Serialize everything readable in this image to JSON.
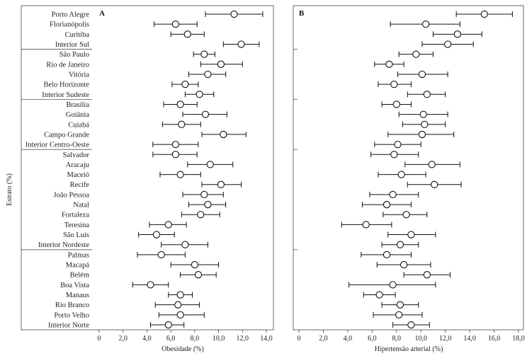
{
  "chart_data": {
    "type": "scatter",
    "style": "forest-plot",
    "y_title": "Estrato (%)",
    "categories": [
      "Porto Alegre",
      "Florianópolis",
      "Curitiba",
      "Interior Sul",
      "São Paulo",
      "Rio de Janeiro",
      "Vitória",
      "Belo Horizonte",
      "Interior Sudeste",
      "Brasília",
      "Goiânia",
      "Cuiabá",
      "Campo Grande",
      "Interior Centro-Oeste",
      "Salvador",
      "Aracaju",
      "Maceió",
      "Recife",
      "João Pessoa",
      "Natal",
      "Fortaleza",
      "Teresina",
      "São Luís",
      "Interior Nordeste",
      "Palmas",
      "Macapá",
      "Belém",
      "Boa Vista",
      "Manaus",
      "Rio Branco",
      "Porto Velho",
      "Interior Norte"
    ],
    "group_sizes": [
      4,
      5,
      5,
      10,
      8
    ],
    "panels": [
      {
        "letter": "A",
        "xlabel": "Obesidade (%)",
        "xlim": [
          0,
          14
        ],
        "ticks": [
          0,
          2,
          4,
          6,
          8,
          10,
          12,
          14
        ],
        "tick_labels": [
          "0",
          "2,0",
          "4,0",
          "6,0",
          "8,0",
          "10,0",
          "12,0",
          "14,0"
        ],
        "estimate": [
          11.3,
          6.4,
          7.4,
          11.9,
          8.8,
          10.2,
          9.1,
          7.2,
          8.4,
          6.8,
          8.9,
          6.9,
          10.4,
          6.4,
          6.4,
          9.3,
          6.8,
          10.2,
          8.8,
          9.1,
          8.5,
          5.8,
          4.8,
          7.2,
          5.2,
          8.0,
          8.3,
          4.3,
          6.8,
          6.6,
          6.8,
          5.8
        ],
        "lower": [
          8.9,
          4.6,
          6.0,
          10.4,
          7.9,
          8.5,
          7.5,
          6.1,
          7.2,
          5.4,
          7.0,
          5.3,
          8.6,
          4.5,
          4.5,
          7.4,
          5.1,
          8.6,
          7.0,
          7.5,
          6.9,
          4.2,
          3.3,
          5.2,
          3.2,
          6.0,
          6.8,
          2.8,
          5.8,
          4.7,
          5.0,
          4.3
        ],
        "upper": [
          13.7,
          8.2,
          8.8,
          13.4,
          9.7,
          12.0,
          10.6,
          8.3,
          9.6,
          8.2,
          10.7,
          8.5,
          12.3,
          8.3,
          8.2,
          11.2,
          8.5,
          11.9,
          10.4,
          10.6,
          10.1,
          7.3,
          6.3,
          9.1,
          7.2,
          10.0,
          9.8,
          5.8,
          7.8,
          8.4,
          8.8,
          7.1
        ]
      },
      {
        "letter": "B",
        "xlabel": "Hipertensão arterial (%)",
        "xlim": [
          0,
          18
        ],
        "ticks": [
          0,
          2,
          4,
          6,
          8,
          10,
          12,
          14,
          16,
          18
        ],
        "tick_labels": [
          "0",
          "2,0",
          "4,0",
          "6,0",
          "8,0",
          "10,0",
          "12,0",
          "14,0",
          "16,0",
          "18,0"
        ],
        "estimate": [
          15.2,
          10.4,
          13.0,
          12.2,
          9.6,
          7.4,
          10.1,
          7.8,
          10.5,
          8.0,
          10.2,
          10.3,
          10.1,
          8.1,
          7.8,
          10.9,
          8.4,
          11.1,
          7.7,
          7.2,
          8.8,
          5.5,
          9.2,
          8.3,
          7.2,
          8.6,
          10.5,
          7.7,
          6.6,
          8.3,
          8.2,
          9.2
        ],
        "lower": [
          12.9,
          7.5,
          11.0,
          10.1,
          8.2,
          6.2,
          8.1,
          6.5,
          8.9,
          6.8,
          8.2,
          8.5,
          7.3,
          6.2,
          5.9,
          8.7,
          6.5,
          8.9,
          5.8,
          5.2,
          6.9,
          3.5,
          7.3,
          6.8,
          5.1,
          6.4,
          8.6,
          4.1,
          5.3,
          6.8,
          6.1,
          7.7
        ],
        "upper": [
          17.5,
          13.2,
          15.0,
          14.3,
          11.0,
          8.6,
          12.2,
          9.2,
          12.0,
          9.2,
          12.2,
          12.0,
          12.7,
          10.0,
          9.8,
          13.2,
          10.4,
          13.3,
          9.8,
          9.2,
          10.5,
          7.6,
          11.2,
          9.8,
          9.2,
          10.8,
          12.4,
          11.2,
          7.9,
          9.8,
          10.1,
          10.7
        ]
      }
    ]
  }
}
